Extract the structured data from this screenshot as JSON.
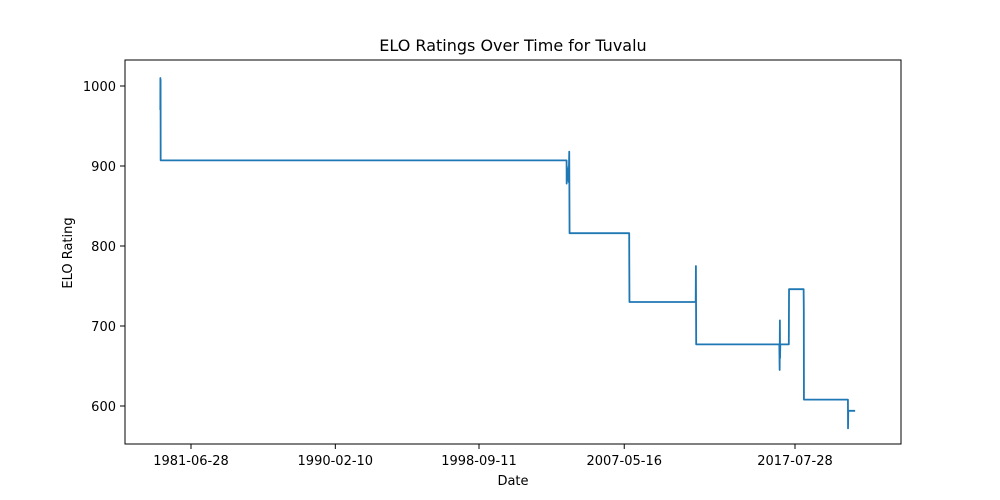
{
  "chart_data": {
    "type": "line",
    "title": "ELO Ratings Over Time for Tuvalu",
    "xlabel": "Date",
    "ylabel": "ELO Rating",
    "x_ticks": [
      "1981-06-28",
      "1990-02-10",
      "1998-09-11",
      "2007-05-16",
      "2017-07-28"
    ],
    "y_ticks": [
      600,
      700,
      800,
      900,
      1000
    ],
    "grid": false,
    "series": [
      {
        "color": "#1f77b4",
        "points": [
          {
            "x": "1979-08-29",
            "y": 970
          },
          {
            "x": "1979-08-30",
            "y": 1010
          },
          {
            "x": "1979-09-01",
            "y": 990
          },
          {
            "x": "1979-09-03",
            "y": 1008
          },
          {
            "x": "1979-09-05",
            "y": 907
          },
          {
            "x": "2003-12-05",
            "y": 907
          },
          {
            "x": "2003-12-07",
            "y": 878
          },
          {
            "x": "2003-12-09",
            "y": 900
          },
          {
            "x": "2004-01-20",
            "y": 880
          },
          {
            "x": "2004-02-01",
            "y": 918
          },
          {
            "x": "2004-02-08",
            "y": 816
          },
          {
            "x": "2007-09-01",
            "y": 816
          },
          {
            "x": "2007-09-03",
            "y": 780
          },
          {
            "x": "2007-09-07",
            "y": 730
          },
          {
            "x": "2011-08-22",
            "y": 730
          },
          {
            "x": "2011-08-27",
            "y": 775
          },
          {
            "x": "2011-09-02",
            "y": 677
          },
          {
            "x": "2016-08-20",
            "y": 677
          },
          {
            "x": "2016-08-27",
            "y": 645
          },
          {
            "x": "2016-09-01",
            "y": 707
          },
          {
            "x": "2016-09-05",
            "y": 660
          },
          {
            "x": "2016-09-10",
            "y": 677
          },
          {
            "x": "2017-03-15",
            "y": 677
          },
          {
            "x": "2017-03-20",
            "y": 746
          },
          {
            "x": "2018-02-01",
            "y": 746
          },
          {
            "x": "2018-02-05",
            "y": 720
          },
          {
            "x": "2018-02-08",
            "y": 608
          },
          {
            "x": "2020-09-25",
            "y": 608
          },
          {
            "x": "2020-09-27",
            "y": 572
          },
          {
            "x": "2020-10-02",
            "y": 594
          },
          {
            "x": "2021-03-01",
            "y": 594
          }
        ]
      }
    ]
  }
}
